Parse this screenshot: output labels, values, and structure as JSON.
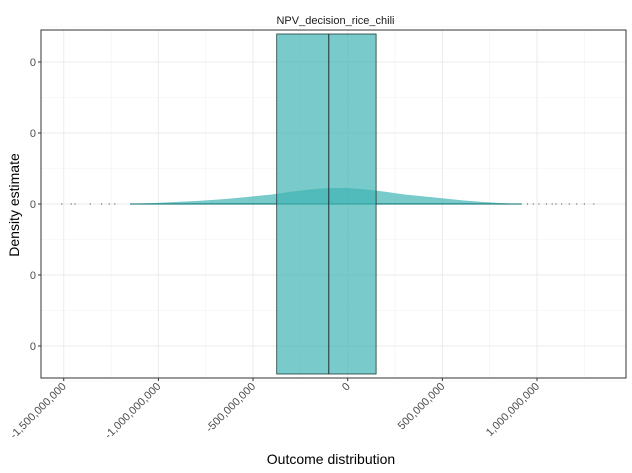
{
  "chart_data": {
    "type": "area",
    "title": "NPV_decision_rice_chili",
    "xlabel": "Outcome distribution",
    "ylabel": "Density estimate",
    "xlim": [
      -1620000000,
      1470000000
    ],
    "x_ticks": [
      {
        "value": -1500000000,
        "label": "-1,500,000,000"
      },
      {
        "value": -1000000000,
        "label": "-1,000,000,000"
      },
      {
        "value": -500000000,
        "label": "-500,000,000"
      },
      {
        "value": 0,
        "label": "0"
      },
      {
        "value": 500000000,
        "label": "500,000,000"
      },
      {
        "value": 1000000000,
        "label": "1,000,000,000"
      }
    ],
    "y_ticks": [
      "0",
      "0",
      "0",
      "0",
      "0"
    ],
    "grid": true,
    "fill_color": "#40b3b3",
    "density": {
      "x": [
        -1150000000,
        -1000000000,
        -900000000,
        -800000000,
        -700000000,
        -600000000,
        -500000000,
        -400000000,
        -300000000,
        -200000000,
        -100000000,
        0,
        100000000,
        200000000,
        300000000,
        400000000,
        500000000,
        600000000,
        700000000,
        800000000,
        920000000
      ],
      "y": [
        0.005,
        0.03,
        0.055,
        0.08,
        0.11,
        0.15,
        0.2,
        0.25,
        0.32,
        0.38,
        0.42,
        0.42,
        0.38,
        0.32,
        0.25,
        0.2,
        0.15,
        0.1,
        0.06,
        0.025,
        0.005
      ]
    },
    "boxplot": {
      "q1": -375000000,
      "median": -100000000,
      "q3": 150000000
    },
    "outliers": [
      -1510000000,
      -1460000000,
      -1440000000,
      -1360000000,
      -1300000000,
      -1260000000,
      -1230000000,
      950000000,
      980000000,
      1010000000,
      1050000000,
      1080000000,
      1100000000,
      1130000000,
      1170000000,
      1210000000,
      1250000000,
      1300000000
    ]
  }
}
